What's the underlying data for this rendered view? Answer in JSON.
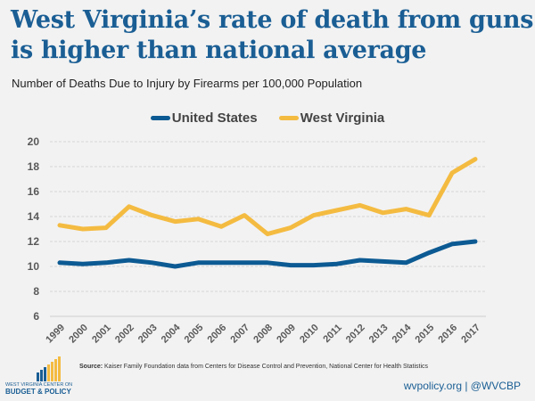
{
  "header": {
    "title_line1": "West Virginia’s rate of death from guns",
    "title_line2": "is higher than national average",
    "subtitle": "Number of Deaths Due to Injury by Firearms per 100,000  Population"
  },
  "chart_data": {
    "type": "line",
    "title": "West Virginia’s rate of death from guns is higher than national average",
    "subtitle": "Number of Deaths Due to Injury by Firearms per 100,000 Population",
    "xlabel": "",
    "ylabel": "",
    "x": [
      "1999",
      "2000",
      "2001",
      "2002",
      "2003",
      "2004",
      "2005",
      "2006",
      "2007",
      "2008",
      "2009",
      "2010",
      "2011",
      "2012",
      "2013",
      "2014",
      "2015",
      "2016",
      "2017"
    ],
    "series": [
      {
        "name": "United States",
        "color": "#0c5a93",
        "values": [
          10.3,
          10.2,
          10.3,
          10.5,
          10.3,
          10.0,
          10.3,
          10.3,
          10.3,
          10.3,
          10.1,
          10.1,
          10.2,
          10.5,
          10.4,
          10.3,
          11.1,
          11.8,
          12.0
        ]
      },
      {
        "name": "West Virginia",
        "color": "#f4bb41",
        "values": [
          13.3,
          13.0,
          13.1,
          14.8,
          14.1,
          13.6,
          13.8,
          13.2,
          14.1,
          12.6,
          13.1,
          14.1,
          14.5,
          14.9,
          14.3,
          14.6,
          14.1,
          17.5,
          18.6
        ]
      }
    ],
    "ylim": [
      6,
      20
    ],
    "yticks": [
      6,
      8,
      10,
      12,
      14,
      16,
      18,
      20
    ],
    "grid": true,
    "legend_position": "top-center"
  },
  "footer": {
    "source_label": "Source:",
    "source_text": "Kaiser Family Foundation data from  Centers for Disease Control and Prevention, National Center for Health Statistics",
    "link": "wvpolicy.org | @WVCBP",
    "logo_line1": "WEST VIRGINIA CENTER ON",
    "logo_line2": "BUDGET & POLICY"
  }
}
